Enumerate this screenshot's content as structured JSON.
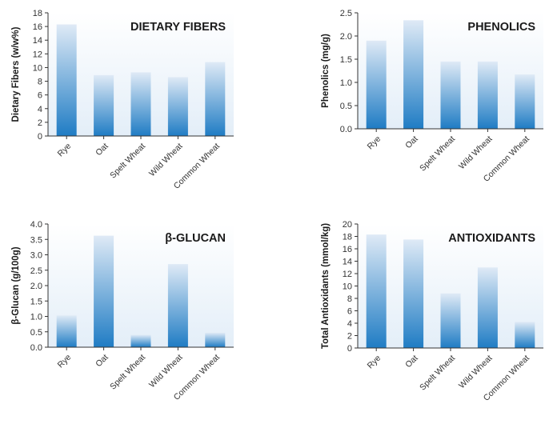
{
  "colors": {
    "bar_top": "#dfeaf6",
    "bar_bottom": "#1f7cc4",
    "panel_top": "#ffffff",
    "panel_bottom": "#e3eef8",
    "axis": "#333333"
  },
  "chart_data": [
    {
      "type": "bar",
      "title": "DIETARY FIBERS",
      "ylabel": "Dietary Fibers (w/w%)",
      "xlabel": "",
      "categories": [
        "Rye",
        "Oat",
        "Spelt Wheat",
        "Wild Wheat",
        "Common Wheat"
      ],
      "values": [
        16.3,
        8.9,
        9.3,
        8.6,
        10.8
      ],
      "ylim": [
        0,
        18
      ],
      "yticks": [
        "0",
        "2",
        "4",
        "6",
        "8",
        "10",
        "12",
        "14",
        "16",
        "18"
      ],
      "grid": false,
      "legend": "none"
    },
    {
      "type": "bar",
      "title": "PHENOLICS",
      "ylabel": "Phenolics (mg/g)",
      "xlabel": "",
      "categories": [
        "Rye",
        "Oat",
        "Spelt Wheat",
        "Wild Wheat",
        "Common Wheat"
      ],
      "values": [
        1.9,
        2.34,
        1.45,
        1.45,
        1.17
      ],
      "ylim": [
        0,
        2.5
      ],
      "yticks": [
        "0.0",
        "0.5",
        "1.0",
        "1.5",
        "2.0",
        "2.5"
      ],
      "grid": false,
      "legend": "none"
    },
    {
      "type": "bar",
      "title": "β-GLUCAN",
      "ylabel": "β-Glucan (g/100g)",
      "xlabel": "",
      "categories": [
        "Rye",
        "Oat",
        "Spelt Wheat",
        "Wild Wheat",
        "Common Wheat"
      ],
      "values": [
        1.03,
        3.62,
        0.4,
        2.7,
        0.47
      ],
      "ylim": [
        0,
        4.0
      ],
      "yticks": [
        "0.0",
        "0.5",
        "1.0",
        "1.5",
        "2.0",
        "2.5",
        "3.0",
        "3.5",
        "4.0"
      ],
      "grid": false,
      "legend": "none"
    },
    {
      "type": "bar",
      "title": "ANTIOXIDANTS",
      "ylabel": "Total Antioxidants (mmol/kg)",
      "xlabel": "",
      "categories": [
        "Rye",
        "Oat",
        "Spelt Wheat",
        "Wild Wheat",
        "Common Wheat"
      ],
      "values": [
        18.3,
        17.5,
        8.8,
        13.0,
        4.2
      ],
      "ylim": [
        0,
        20
      ],
      "yticks": [
        "0",
        "2",
        "4",
        "6",
        "8",
        "10",
        "12",
        "14",
        "16",
        "18",
        "20"
      ],
      "grid": false,
      "legend": "none"
    }
  ]
}
